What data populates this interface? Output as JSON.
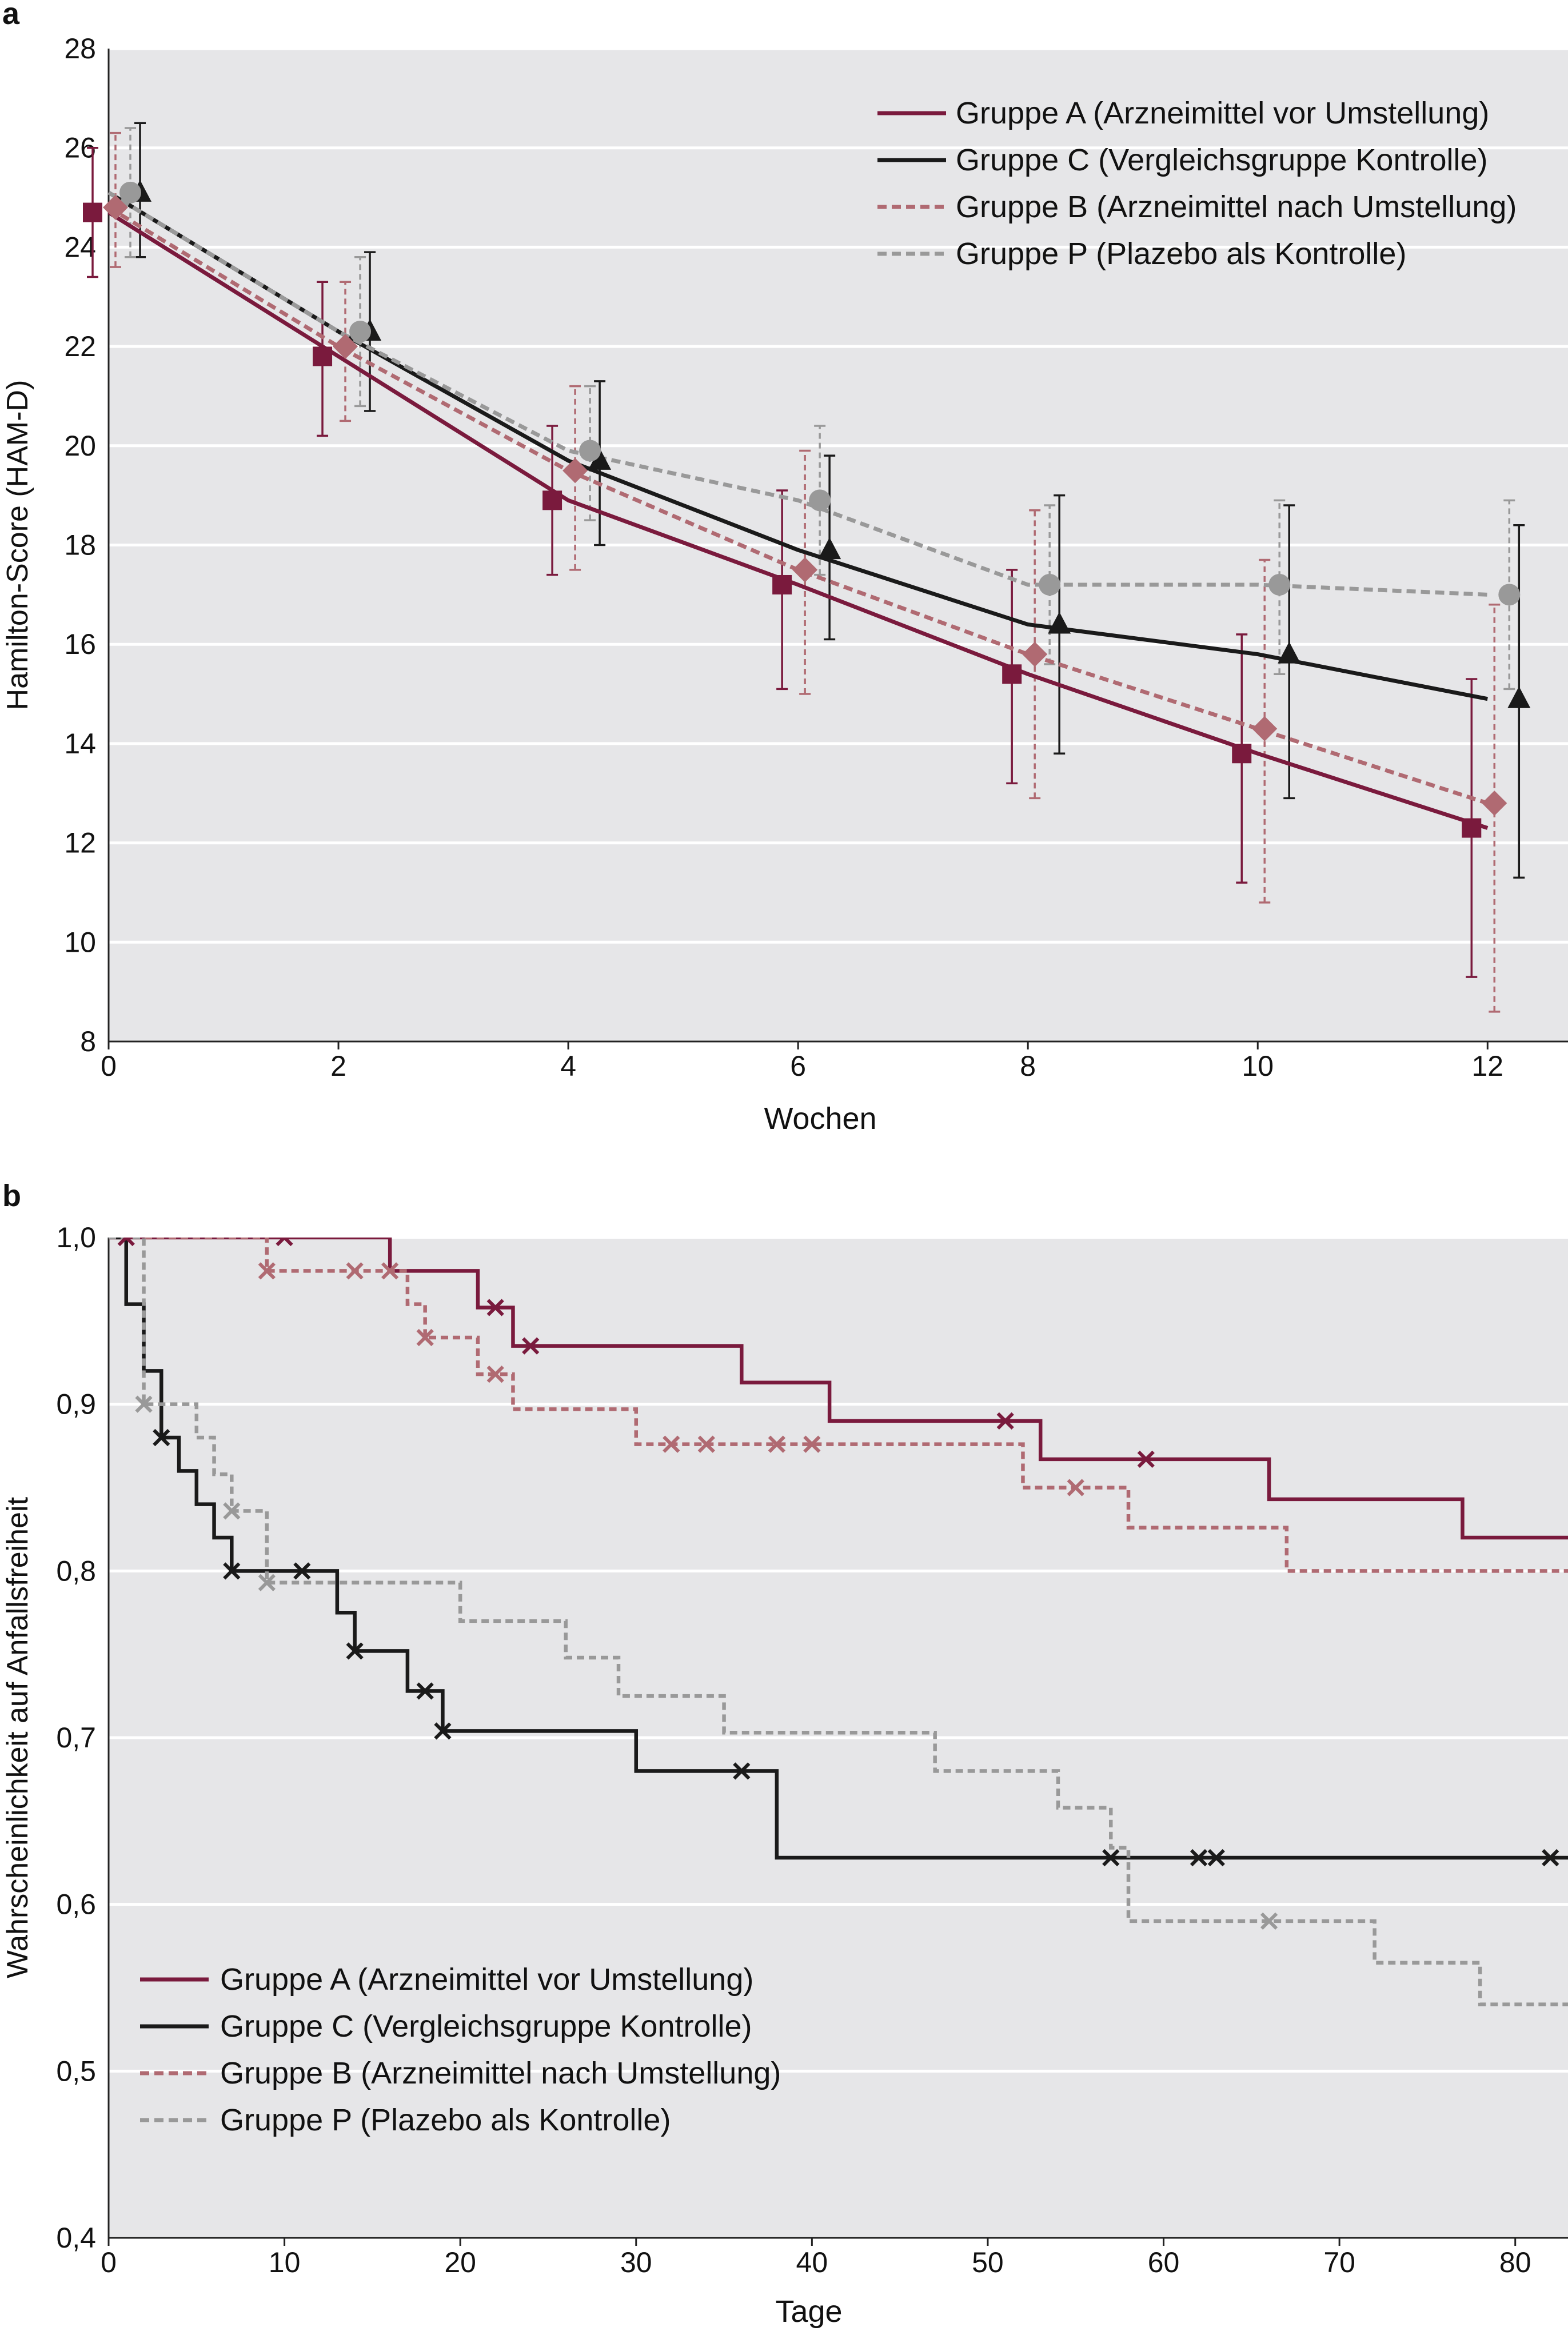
{
  "chart_data": [
    {
      "panel": "a",
      "type": "line",
      "ylabel": "Hamilton-Score (HAM-D)",
      "xlabel": "Wochen",
      "xlim": [
        0,
        12.7
      ],
      "ylim": [
        8,
        28
      ],
      "xticks": [
        0,
        2,
        4,
        6,
        8,
        10,
        12
      ],
      "yticks": [
        8,
        10,
        12,
        14,
        16,
        18,
        20,
        22,
        24,
        26,
        28
      ],
      "grid": "horizontal",
      "error_bars": true,
      "legend_position": "top-right",
      "series": [
        {
          "name": "Gruppe A (Arzneimittel vor Umstellung)",
          "color": "#7a1a3d",
          "dash": "solid",
          "marker": "square",
          "x": [
            0,
            2,
            4,
            6,
            8,
            10,
            12
          ],
          "y": [
            24.7,
            21.8,
            18.9,
            17.2,
            15.4,
            13.8,
            12.3
          ],
          "err_low": [
            23.4,
            20.2,
            17.4,
            15.1,
            13.2,
            11.2,
            9.3
          ],
          "err_high": [
            26.0,
            23.3,
            20.4,
            19.1,
            17.5,
            16.2,
            15.3
          ]
        },
        {
          "name": "Gruppe C (Vergleichsgruppe Kontrolle)",
          "color": "#1a1a1a",
          "dash": "solid",
          "marker": "triangle",
          "x": [
            0,
            2,
            4,
            6,
            8,
            10,
            12
          ],
          "y": [
            25.1,
            22.3,
            19.7,
            17.9,
            16.4,
            15.8,
            14.9
          ],
          "err_low": [
            23.8,
            20.7,
            18.0,
            16.1,
            13.8,
            12.9,
            11.3
          ],
          "err_high": [
            26.5,
            23.9,
            21.3,
            19.8,
            19.0,
            18.8,
            18.4
          ]
        },
        {
          "name": "Gruppe B (Arzneimittel nach Umstellung)",
          "color": "#b06a72",
          "dash": "dashed",
          "marker": "diamond",
          "x": [
            0,
            2,
            4,
            6,
            8,
            10,
            12
          ],
          "y": [
            24.8,
            22.0,
            19.5,
            17.5,
            15.8,
            14.3,
            12.8
          ],
          "err_low": [
            23.6,
            20.5,
            17.5,
            15.0,
            12.9,
            10.8,
            8.6
          ],
          "err_high": [
            26.3,
            23.3,
            21.2,
            19.9,
            18.7,
            17.7,
            16.8
          ]
        },
        {
          "name": "Gruppe P (Plazebo als Kontrolle)",
          "color": "#999999",
          "dash": "dashed",
          "marker": "circle",
          "x": [
            0,
            2,
            4,
            6,
            8,
            10,
            12
          ],
          "y": [
            25.1,
            22.3,
            19.9,
            18.9,
            17.2,
            17.2,
            17.0
          ],
          "err_low": [
            23.8,
            20.8,
            18.5,
            17.4,
            15.6,
            15.4,
            15.1
          ],
          "err_high": [
            26.4,
            23.8,
            21.2,
            20.4,
            18.8,
            18.9,
            18.9
          ]
        }
      ]
    },
    {
      "panel": "b",
      "type": "line",
      "step": true,
      "ylabel": "Wahrscheinlichkeit auf Anfallsfreiheit",
      "xlabel": "Tage",
      "xlim": [
        0,
        83
      ],
      "ylim": [
        0.4,
        1.0
      ],
      "xticks": [
        0,
        10,
        20,
        30,
        40,
        50,
        60,
        70,
        80
      ],
      "yticks": [
        0.4,
        0.5,
        0.6,
        0.7,
        0.8,
        0.9,
        1.0
      ],
      "ytick_labels": [
        "0,4",
        "0,5",
        "0,6",
        "0,7",
        "0,8",
        "0,9",
        "1,0"
      ],
      "grid": "horizontal",
      "legend_position": "bottom-left",
      "series": [
        {
          "name": "Gruppe A (Arzneimittel vor Umstellung)",
          "color": "#7a1a3d",
          "dash": "solid",
          "steps": [
            [
              0,
              1.0
            ],
            [
              16,
              0.98
            ],
            [
              21,
              0.958
            ],
            [
              23,
              0.935
            ],
            [
              36,
              0.913
            ],
            [
              41,
              0.89
            ],
            [
              53,
              0.867
            ],
            [
              66,
              0.843
            ],
            [
              77,
              0.82
            ],
            [
              83,
              0.82
            ]
          ],
          "censor": [
            [
              1,
              1.0
            ],
            [
              10,
              1.0
            ],
            [
              22,
              0.958
            ],
            [
              24,
              0.935
            ],
            [
              51,
              0.89
            ],
            [
              59,
              0.867
            ]
          ]
        },
        {
          "name": "Gruppe C (Vergleichsgruppe Kontrolle)",
          "color": "#1a1a1a",
          "dash": "solid",
          "steps": [
            [
              0,
              1.0
            ],
            [
              1,
              0.96
            ],
            [
              2,
              0.92
            ],
            [
              3,
              0.88
            ],
            [
              4,
              0.86
            ],
            [
              5,
              0.84
            ],
            [
              6,
              0.82
            ],
            [
              7,
              0.8
            ],
            [
              13,
              0.775
            ],
            [
              14,
              0.752
            ],
            [
              17,
              0.728
            ],
            [
              19,
              0.704
            ],
            [
              30,
              0.68
            ],
            [
              38,
              0.628
            ],
            [
              83,
              0.628
            ]
          ],
          "censor": [
            [
              3,
              0.88
            ],
            [
              7,
              0.8
            ],
            [
              11,
              0.8
            ],
            [
              14,
              0.752
            ],
            [
              18,
              0.728
            ],
            [
              19,
              0.704
            ],
            [
              36,
              0.68
            ],
            [
              57,
              0.628
            ],
            [
              62,
              0.628
            ],
            [
              63,
              0.628
            ],
            [
              82,
              0.628
            ]
          ]
        },
        {
          "name": "Gruppe B (Arzneimittel nach Umstellung)",
          "color": "#b06a72",
          "dash": "dashed",
          "steps": [
            [
              0,
              1.0
            ],
            [
              9,
              0.98
            ],
            [
              17,
              0.96
            ],
            [
              18,
              0.94
            ],
            [
              21,
              0.918
            ],
            [
              23,
              0.897
            ],
            [
              30,
              0.876
            ],
            [
              52,
              0.85
            ],
            [
              58,
              0.826
            ],
            [
              67,
              0.8
            ],
            [
              83,
              0.8
            ]
          ],
          "censor": [
            [
              9,
              0.98
            ],
            [
              14,
              0.98
            ],
            [
              16,
              0.98
            ],
            [
              18,
              0.94
            ],
            [
              22,
              0.918
            ],
            [
              32,
              0.876
            ],
            [
              34,
              0.876
            ],
            [
              38,
              0.876
            ],
            [
              40,
              0.876
            ],
            [
              55,
              0.85
            ]
          ]
        },
        {
          "name": "Gruppe P (Plazebo als Kontrolle)",
          "color": "#999999",
          "dash": "dashed",
          "steps": [
            [
              0,
              1.0
            ],
            [
              2,
              0.9
            ],
            [
              5,
              0.88
            ],
            [
              6,
              0.858
            ],
            [
              7,
              0.836
            ],
            [
              9,
              0.793
            ],
            [
              20,
              0.77
            ],
            [
              26,
              0.748
            ],
            [
              29,
              0.725
            ],
            [
              35,
              0.703
            ],
            [
              47,
              0.68
            ],
            [
              54,
              0.658
            ],
            [
              57,
              0.634
            ],
            [
              58,
              0.59
            ],
            [
              72,
              0.565
            ],
            [
              78,
              0.54
            ],
            [
              83,
              0.54
            ]
          ],
          "censor": [
            [
              2,
              0.9
            ],
            [
              7,
              0.836
            ],
            [
              9,
              0.793
            ],
            [
              66,
              0.59
            ]
          ]
        }
      ]
    }
  ]
}
